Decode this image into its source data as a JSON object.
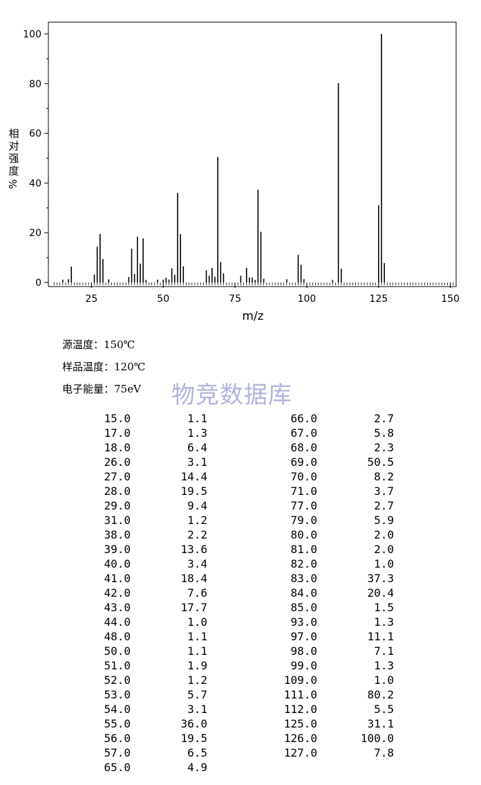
{
  "chart_data": {
    "type": "bar",
    "xlabel": "m/z",
    "ylabel": "相对强度%",
    "xlim": [
      10,
      152
    ],
    "ylim": [
      0,
      100
    ],
    "xticks": [
      25,
      50,
      75,
      100,
      125,
      150
    ],
    "yticks": [
      0,
      20,
      40,
      60,
      80,
      100
    ],
    "x": [
      15,
      17,
      18,
      26,
      27,
      28,
      29,
      31,
      38,
      39,
      40,
      41,
      42,
      43,
      44,
      48,
      50,
      51,
      52,
      53,
      54,
      55,
      56,
      57,
      65,
      66,
      67,
      68,
      69,
      70,
      71,
      77,
      79,
      80,
      81,
      82,
      83,
      84,
      85,
      93,
      97,
      98,
      99,
      109,
      111,
      112,
      125,
      126,
      127
    ],
    "values": [
      1.1,
      1.3,
      6.4,
      3.1,
      14.4,
      19.5,
      9.4,
      1.2,
      2.2,
      13.6,
      3.4,
      18.4,
      7.6,
      17.7,
      1.0,
      1.1,
      1.1,
      1.9,
      1.2,
      5.7,
      3.1,
      36.0,
      19.5,
      6.5,
      4.9,
      2.7,
      5.8,
      2.3,
      50.5,
      8.2,
      3.7,
      2.7,
      5.9,
      2.0,
      2.0,
      1.0,
      37.3,
      20.4,
      1.5,
      1.3,
      11.1,
      7.1,
      1.3,
      1.0,
      80.2,
      5.5,
      31.1,
      100.0,
      7.8
    ]
  },
  "conditions": {
    "source_temp": "源温度：150℃",
    "sample_temp": "样品温度：120℃",
    "electron_energy": "电子能量：75eV"
  },
  "watermark": "物竞数据库",
  "table": {
    "left": [
      [
        "15.0",
        "1.1"
      ],
      [
        "17.0",
        "1.3"
      ],
      [
        "18.0",
        "6.4"
      ],
      [
        "26.0",
        "3.1"
      ],
      [
        "27.0",
        "14.4"
      ],
      [
        "28.0",
        "19.5"
      ],
      [
        "29.0",
        "9.4"
      ],
      [
        "31.0",
        "1.2"
      ],
      [
        "38.0",
        "2.2"
      ],
      [
        "39.0",
        "13.6"
      ],
      [
        "40.0",
        "3.4"
      ],
      [
        "41.0",
        "18.4"
      ],
      [
        "42.0",
        "7.6"
      ],
      [
        "43.0",
        "17.7"
      ],
      [
        "44.0",
        "1.0"
      ],
      [
        "48.0",
        "1.1"
      ],
      [
        "50.0",
        "1.1"
      ],
      [
        "51.0",
        "1.9"
      ],
      [
        "52.0",
        "1.2"
      ],
      [
        "53.0",
        "5.7"
      ],
      [
        "54.0",
        "3.1"
      ],
      [
        "55.0",
        "36.0"
      ],
      [
        "56.0",
        "19.5"
      ],
      [
        "57.0",
        "6.5"
      ],
      [
        "65.0",
        "4.9"
      ]
    ],
    "right": [
      [
        "66.0",
        "2.7"
      ],
      [
        "67.0",
        "5.8"
      ],
      [
        "68.0",
        "2.3"
      ],
      [
        "69.0",
        "50.5"
      ],
      [
        "70.0",
        "8.2"
      ],
      [
        "71.0",
        "3.7"
      ],
      [
        "77.0",
        "2.7"
      ],
      [
        "79.0",
        "5.9"
      ],
      [
        "80.0",
        "2.0"
      ],
      [
        "81.0",
        "2.0"
      ],
      [
        "82.0",
        "1.0"
      ],
      [
        "83.0",
        "37.3"
      ],
      [
        "84.0",
        "20.4"
      ],
      [
        "85.0",
        "1.5"
      ],
      [
        "93.0",
        "1.3"
      ],
      [
        "97.0",
        "11.1"
      ],
      [
        "98.0",
        "7.1"
      ],
      [
        "99.0",
        "1.3"
      ],
      [
        "109.0",
        "1.0"
      ],
      [
        "111.0",
        "80.2"
      ],
      [
        "112.0",
        "5.5"
      ],
      [
        "125.0",
        "31.1"
      ],
      [
        "126.0",
        "100.0"
      ],
      [
        "127.0",
        "7.8"
      ]
    ]
  }
}
